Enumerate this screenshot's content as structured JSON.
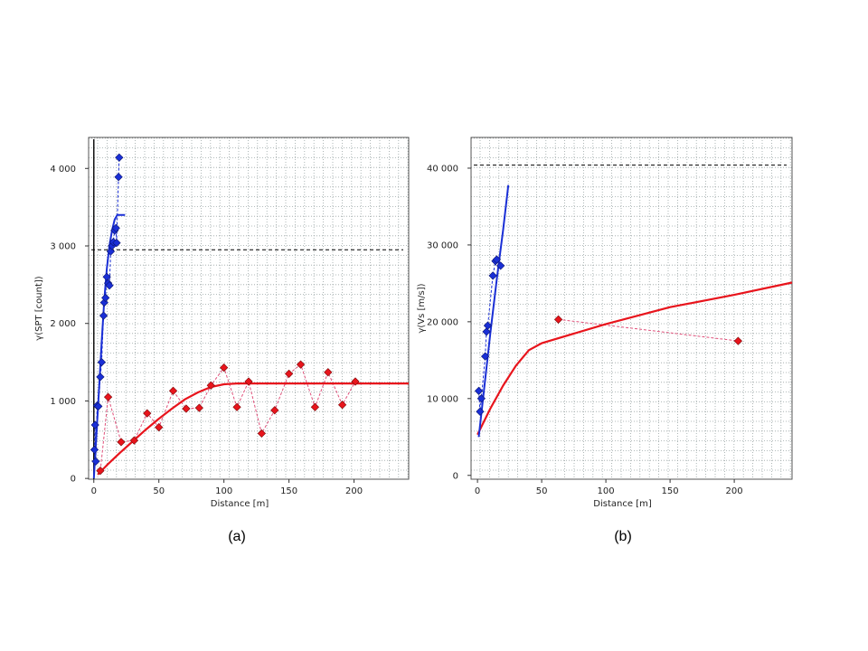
{
  "colors": {
    "blue": "#1a2fd6",
    "red": "#e8141c",
    "red_dash": "#e0507a",
    "sill": "#000000",
    "grid": "#9aa5a5"
  },
  "chart_data": [
    {
      "type": "scatter",
      "panel_label": "(a)",
      "xlabel": "Distance [m]",
      "ylabel": "γ(SPT [count])",
      "xlim": [
        -4,
        242
      ],
      "ylim": [
        -10,
        4400
      ],
      "xticks": [
        0,
        50,
        100,
        150,
        200
      ],
      "xtick_labels": [
        "0",
        "50",
        "100",
        "150",
        "200"
      ],
      "yticks": [
        0,
        1000,
        2000,
        3000,
        4000
      ],
      "ytick_labels": [
        "0",
        "1 000",
        "2 000",
        "3 000",
        "4 000"
      ],
      "grid": true,
      "sill_line": 2950,
      "series": [
        {
          "role": "blue-points",
          "points": [
            [
              0.5,
              370
            ],
            [
              1,
              690
            ],
            [
              1.5,
              220
            ],
            [
              2.5,
              940
            ],
            [
              3.5,
              930
            ],
            [
              5,
              1310
            ],
            [
              6,
              1500
            ],
            [
              7.5,
              2100
            ],
            [
              8,
              2270
            ],
            [
              9,
              2330
            ],
            [
              10,
              2600
            ],
            [
              11,
              2520
            ],
            [
              12,
              2490
            ],
            [
              13,
              2930
            ],
            [
              14,
              3000
            ],
            [
              15,
              3050
            ],
            [
              16,
              3200
            ],
            [
              17,
              3230
            ],
            [
              17.5,
              3040
            ],
            [
              19,
              3890
            ],
            [
              19.5,
              4140
            ]
          ]
        },
        {
          "role": "blue-model",
          "points": [
            [
              0,
              0
            ],
            [
              2,
              550
            ],
            [
              4,
              1150
            ],
            [
              6,
              1750
            ],
            [
              8,
              2300
            ],
            [
              10,
              2700
            ],
            [
              12,
              3000
            ],
            [
              14,
              3200
            ],
            [
              16,
              3340
            ],
            [
              18,
              3400
            ],
            [
              24,
              3400
            ]
          ]
        },
        {
          "role": "red-points",
          "points": [
            [
              5,
              100
            ],
            [
              11,
              1050
            ],
            [
              21,
              470
            ],
            [
              31,
              490
            ],
            [
              41,
              840
            ],
            [
              50,
              660
            ],
            [
              61,
              1130
            ],
            [
              71,
              900
            ],
            [
              81,
              910
            ],
            [
              90,
              1200
            ],
            [
              100,
              1430
            ],
            [
              110,
              920
            ],
            [
              119,
              1250
            ],
            [
              129,
              580
            ],
            [
              139,
              880
            ],
            [
              150,
              1350
            ],
            [
              159,
              1470
            ],
            [
              170,
              920
            ],
            [
              180,
              1370
            ],
            [
              191,
              950
            ],
            [
              201,
              1250
            ]
          ]
        },
        {
          "role": "red-model",
          "points": [
            [
              3,
              50
            ],
            [
              10,
              170
            ],
            [
              20,
              330
            ],
            [
              30,
              480
            ],
            [
              40,
              630
            ],
            [
              50,
              770
            ],
            [
              60,
              900
            ],
            [
              70,
              1020
            ],
            [
              80,
              1110
            ],
            [
              90,
              1180
            ],
            [
              100,
              1215
            ],
            [
              110,
              1225
            ],
            [
              120,
              1225
            ],
            [
              242,
              1225
            ]
          ]
        }
      ]
    },
    {
      "type": "scatter",
      "panel_label": "(b)",
      "xlabel": "Distance [m]",
      "ylabel": "γ(Vs [m/s])",
      "xlim": [
        -5,
        245
      ],
      "ylim": [
        -500,
        44000
      ],
      "xticks": [
        0,
        50,
        100,
        150,
        200
      ],
      "xtick_labels": [
        "0",
        "50",
        "100",
        "150",
        "200"
      ],
      "yticks": [
        0,
        10000,
        20000,
        30000,
        40000
      ],
      "ytick_labels": [
        "0",
        "10 000",
        "20 000",
        "30 000",
        "40 000"
      ],
      "grid": true,
      "sill_line": 40400,
      "series": [
        {
          "role": "blue-points",
          "points": [
            [
              1,
              11000
            ],
            [
              2,
              8300
            ],
            [
              3,
              10000
            ],
            [
              6,
              15500
            ],
            [
              7,
              18700
            ],
            [
              8,
              19500
            ],
            [
              12,
              26000
            ],
            [
              14,
              27900
            ],
            [
              15,
              28100
            ],
            [
              18,
              27300
            ]
          ]
        },
        {
          "role": "blue-model",
          "points": [
            [
              1,
              5000
            ],
            [
              5,
              11000
            ],
            [
              10,
              18500
            ],
            [
              15,
              25500
            ],
            [
              20,
              32000
            ],
            [
              24,
              37800
            ]
          ]
        },
        {
          "role": "red-points",
          "points": [
            [
              63,
              20300
            ],
            [
              203,
              17500
            ]
          ]
        },
        {
          "role": "red-model",
          "points": [
            [
              0,
              5300
            ],
            [
              10,
              8700
            ],
            [
              20,
              11700
            ],
            [
              30,
              14300
            ],
            [
              40,
              16300
            ],
            [
              50,
              17200
            ],
            [
              100,
              19700
            ],
            [
              150,
              21900
            ],
            [
              200,
              23500
            ],
            [
              245,
              25100
            ]
          ]
        }
      ]
    }
  ]
}
